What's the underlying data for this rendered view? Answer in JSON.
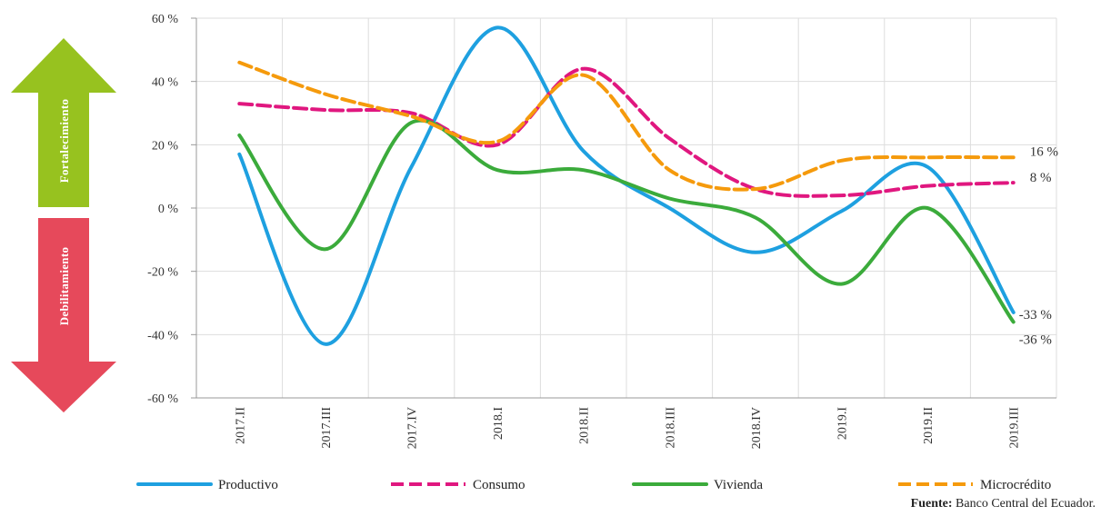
{
  "chart_data": {
    "type": "line",
    "categories": [
      "2017.II",
      "2017.III",
      "2017.IV",
      "2018.I",
      "2018.II",
      "2018.III",
      "2018.IV",
      "2019.I",
      "2019.II",
      "2019.III"
    ],
    "ylim": [
      -60,
      60
    ],
    "yticks": [
      -60,
      -40,
      -20,
      0,
      20,
      40,
      60
    ],
    "ytick_labels": [
      "-60 %",
      "-40 %",
      "-20 %",
      "0 %",
      "20 %",
      "40 %",
      "60 %"
    ],
    "grid": true,
    "legend_position": "bottom",
    "series": [
      {
        "name": "Productivo",
        "values": [
          17,
          -43,
          13,
          57,
          18,
          0,
          -14,
          -1,
          13,
          -33
        ],
        "color": "#1ea0e0",
        "dash": false
      },
      {
        "name": "Consumo",
        "values": [
          33,
          31,
          30,
          20,
          44,
          22,
          6,
          4,
          7,
          8
        ],
        "color": "#e0177f",
        "dash": true
      },
      {
        "name": "Vivienda",
        "values": [
          23,
          -13,
          27,
          12,
          12,
          3,
          -3,
          -24,
          0,
          -36
        ],
        "color": "#3bab3b",
        "dash": false
      },
      {
        "name": "Microcrédito",
        "values": [
          46,
          36,
          29,
          21,
          42,
          12,
          6,
          15,
          16,
          16
        ],
        "color": "#f59a0c",
        "dash": true
      }
    ],
    "end_labels": [
      "16 %",
      "8 %",
      "-33 %",
      "-36 %"
    ]
  },
  "arrows": {
    "up_label": "Fortalecimiento",
    "down_label": "Debilitamiento",
    "up_color": "#97c21f",
    "down_color": "#e6495b"
  },
  "source": {
    "label": "Fuente:",
    "text": " Banco Central del Ecuador."
  }
}
